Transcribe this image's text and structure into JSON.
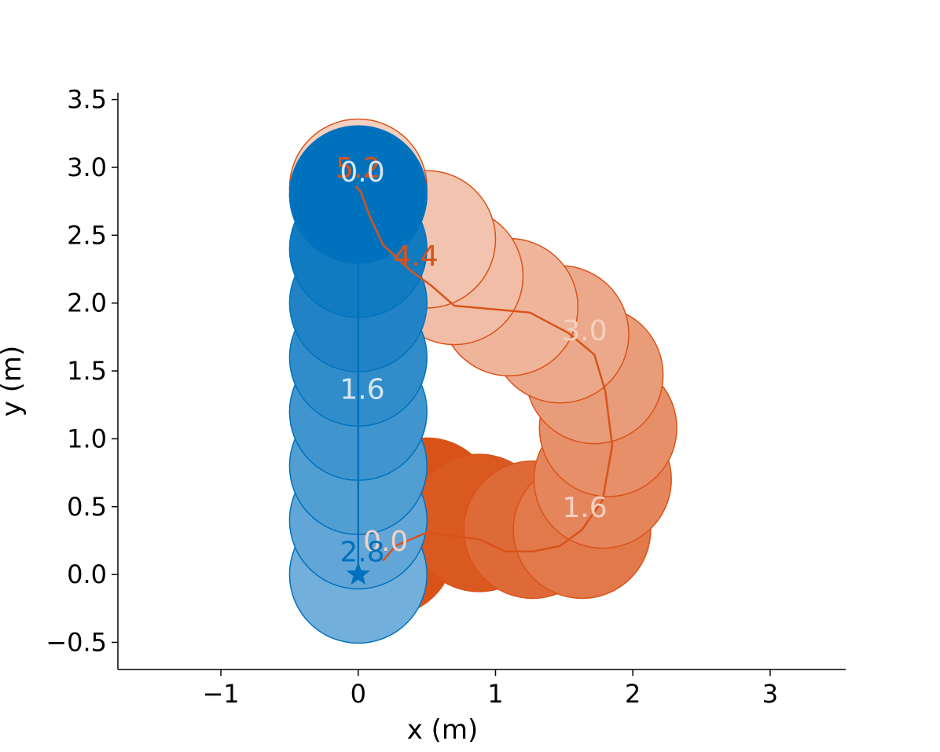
{
  "chart_data": {
    "type": "scatter",
    "title": "",
    "xlabel": "x (m)",
    "ylabel": "y (m)",
    "xlim": [
      -1.75,
      3.55
    ],
    "ylim": [
      -0.7,
      3.55
    ],
    "xticks": [
      -1,
      0,
      1,
      2,
      3
    ],
    "yticks": [
      -0.5,
      0.0,
      0.5,
      1.0,
      1.5,
      2.0,
      2.5,
      3.0,
      3.5
    ],
    "xtick_labels": [
      "−1",
      "0",
      "1",
      "2",
      "3"
    ],
    "ytick_labels": [
      "−0.5",
      "0.0",
      "0.5",
      "1.0",
      "1.5",
      "2.0",
      "2.5",
      "3.0",
      "3.5"
    ],
    "grid": false,
    "agent_radius": 0.5,
    "series": [
      {
        "color_dark": "#d95319",
        "color_light": "#f5d0c0",
        "start": [
          0.18,
          0.1
        ],
        "goal": [
          0.0,
          3.0
        ],
        "path": [
          [
            0.18,
            0.1
          ],
          [
            0.27,
            0.21
          ],
          [
            0.5,
            0.31
          ],
          [
            0.88,
            0.26
          ],
          [
            1.07,
            0.17
          ],
          [
            1.27,
            0.17
          ],
          [
            1.47,
            0.21
          ],
          [
            1.63,
            0.33
          ],
          [
            1.78,
            0.55
          ],
          [
            1.85,
            0.95
          ],
          [
            1.8,
            1.35
          ],
          [
            1.72,
            1.62
          ],
          [
            1.53,
            1.78
          ],
          [
            1.25,
            1.93
          ],
          [
            1.03,
            1.95
          ],
          [
            0.7,
            1.98
          ],
          [
            0.53,
            2.13
          ],
          [
            0.38,
            2.24
          ],
          [
            0.18,
            2.43
          ],
          [
            0.08,
            2.65
          ],
          [
            0.02,
            2.82
          ],
          [
            -0.02,
            2.86
          ]
        ],
        "discs": [
          [
            0.2,
            0.2
          ],
          [
            0.5,
            0.5
          ],
          [
            0.88,
            0.38
          ],
          [
            1.27,
            0.33
          ],
          [
            1.63,
            0.33
          ],
          [
            1.78,
            0.7
          ],
          [
            1.82,
            1.08
          ],
          [
            1.72,
            1.47
          ],
          [
            1.47,
            1.77
          ],
          [
            1.1,
            1.97
          ],
          [
            0.7,
            2.2
          ],
          [
            0.5,
            2.47
          ],
          [
            0.0,
            2.85
          ]
        ],
        "time_labels": [
          {
            "text": "0.0",
            "x": 0.2,
            "y": 0.25
          },
          {
            "text": "1.6",
            "x": 1.65,
            "y": 0.5
          },
          {
            "text": "3.0",
            "x": 1.65,
            "y": 1.8
          },
          {
            "text": "4.4",
            "x": 0.42,
            "y": 2.35
          },
          {
            "text": "5.2",
            "x": 0.0,
            "y": 3.0
          }
        ]
      },
      {
        "color_dark": "#0072bd",
        "color_light": "#72afdb",
        "start": [
          0.0,
          0.0
        ],
        "goal": [
          0.0,
          3.0
        ],
        "path": [
          [
            0.0,
            0.0
          ],
          [
            0.0,
            2.8
          ]
        ],
        "discs": [
          [
            0.0,
            0.0
          ],
          [
            0.0,
            0.4
          ],
          [
            0.0,
            0.8
          ],
          [
            0.0,
            1.2
          ],
          [
            0.0,
            1.6
          ],
          [
            0.0,
            2.0
          ],
          [
            0.0,
            2.4
          ],
          [
            0.0,
            2.8
          ]
        ],
        "time_labels": [
          {
            "text": "2.8",
            "x": 0.03,
            "y": 0.17
          },
          {
            "text": "1.6",
            "x": 0.03,
            "y": 1.37
          },
          {
            "text": "0.0",
            "x": 0.03,
            "y": 2.97
          }
        ]
      }
    ]
  }
}
